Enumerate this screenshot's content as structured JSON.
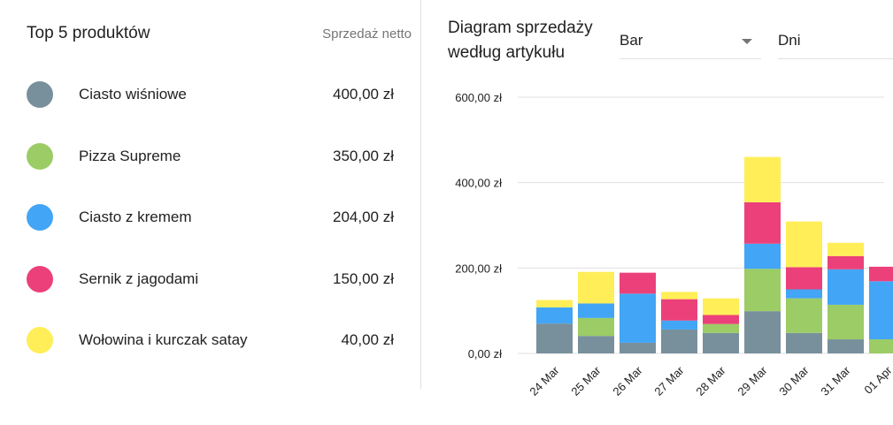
{
  "top_products": {
    "title": "Top 5 produktów",
    "column_header": "Sprzedaż netto",
    "items": [
      {
        "name": "Ciasto wiśniowe",
        "value": "400,00 zł",
        "color": "#78909c"
      },
      {
        "name": "Pizza Supreme",
        "value": "350,00 zł",
        "color": "#9ccc65"
      },
      {
        "name": "Ciasto z kremem",
        "value": "204,00 zł",
        "color": "#42a5f5"
      },
      {
        "name": "Sernik z jagodami",
        "value": "150,00 zł",
        "color": "#ec407a"
      },
      {
        "name": "Wołowina i kurczak satay",
        "value": "40,00 zł",
        "color": "#ffee58"
      }
    ]
  },
  "sales_chart": {
    "title_line1": "Diagram sprzedaży",
    "title_line2": "według artykułu",
    "chart_type_select": "Bar",
    "period_select": "Dni"
  },
  "chart_data": {
    "type": "bar",
    "stacked": true,
    "categories": [
      "24 Mar",
      "25 Mar",
      "26 Mar",
      "27 Mar",
      "28 Mar",
      "29 Mar",
      "30 Mar",
      "31 Mar",
      "01 Apr"
    ],
    "ylim": [
      0,
      600
    ],
    "yticks": [
      "0,00 zł",
      "200,00 zł",
      "400,00 zł",
      "600,00 zł"
    ],
    "ytick_values": [
      0,
      200,
      400,
      600
    ],
    "grid": true,
    "series": [
      {
        "name": "Ciasto wiśniowe",
        "color": "#78909c",
        "values": [
          70,
          41,
          25,
          56,
          48,
          99,
          48,
          33,
          0
        ]
      },
      {
        "name": "Pizza Supreme",
        "color": "#9ccc65",
        "values": [
          0,
          42,
          0,
          0,
          21,
          99,
          81,
          81,
          33
        ]
      },
      {
        "name": "Ciasto z kremem",
        "color": "#42a5f5",
        "values": [
          38,
          34,
          115,
          21,
          0,
          59,
          21,
          83,
          136
        ]
      },
      {
        "name": "Sernik z jagodami",
        "color": "#ec407a",
        "values": [
          0,
          0,
          49,
          50,
          21,
          97,
          52,
          31,
          34
        ]
      },
      {
        "name": "Wołowina i kurczak satay",
        "color": "#ffee58",
        "values": [
          17,
          74,
          0,
          17,
          39,
          106,
          107,
          31,
          0
        ]
      }
    ]
  }
}
